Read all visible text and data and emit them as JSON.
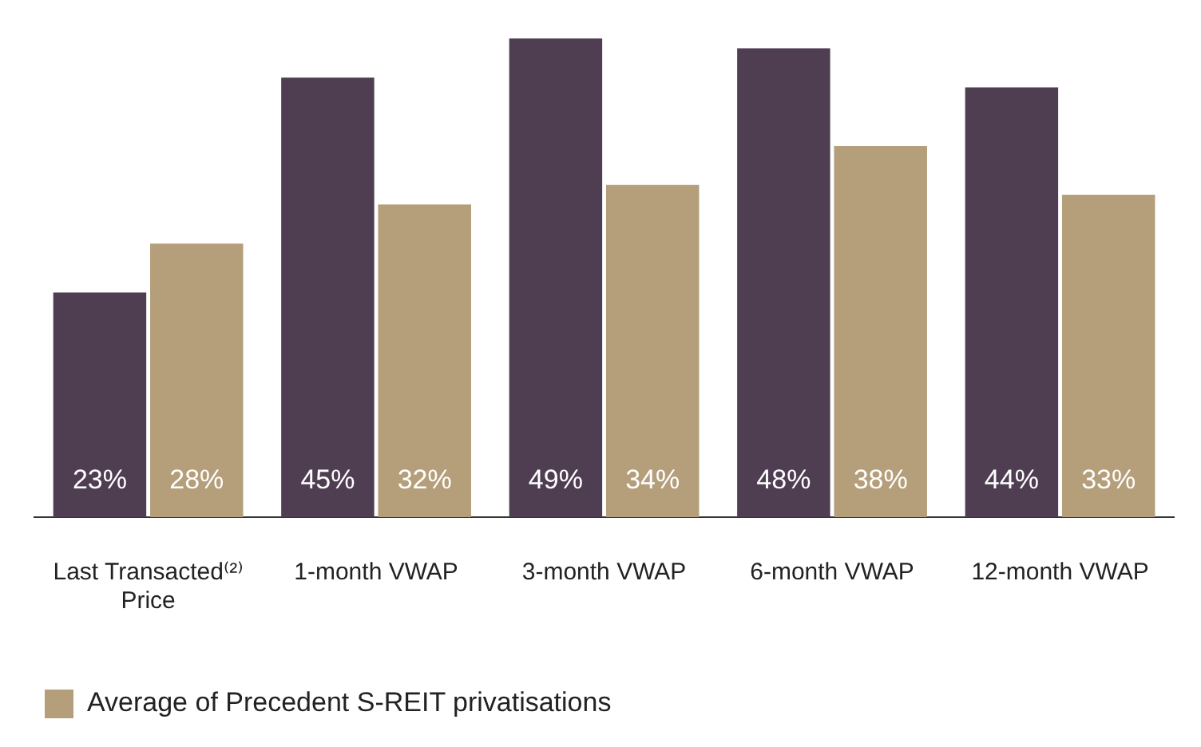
{
  "chart_data": {
    "type": "bar",
    "categories": [
      "Last Transacted⁽²⁾ Price",
      "1-month VWAP",
      "3-month VWAP",
      "6-month VWAP",
      "12-month VWAP"
    ],
    "series": [
      {
        "color": "#4f3d52",
        "values": [
          23,
          45,
          49,
          48,
          44
        ],
        "value_labels": [
          "23%",
          "45%",
          "49%",
          "48%",
          "44%"
        ]
      },
      {
        "name": "Average of Precedent S-REIT privatisations",
        "color": "#b59e7a",
        "values": [
          28,
          32,
          34,
          38,
          33
        ],
        "value_labels": [
          "28%",
          "32%",
          "34%",
          "38%",
          "33%"
        ]
      }
    ],
    "grid": false,
    "legend": "bottom"
  }
}
